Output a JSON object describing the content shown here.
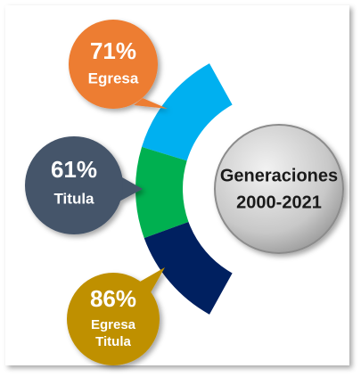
{
  "center": {
    "lines": [
      "Generaciones",
      "2000-2021"
    ]
  },
  "nodes": [
    {
      "percent": "71%",
      "label": [
        "Egresa"
      ]
    },
    {
      "percent": "61%",
      "label": [
        "Titula"
      ]
    },
    {
      "percent": "86%",
      "label": [
        "Egresa",
        "Titula"
      ]
    }
  ]
}
